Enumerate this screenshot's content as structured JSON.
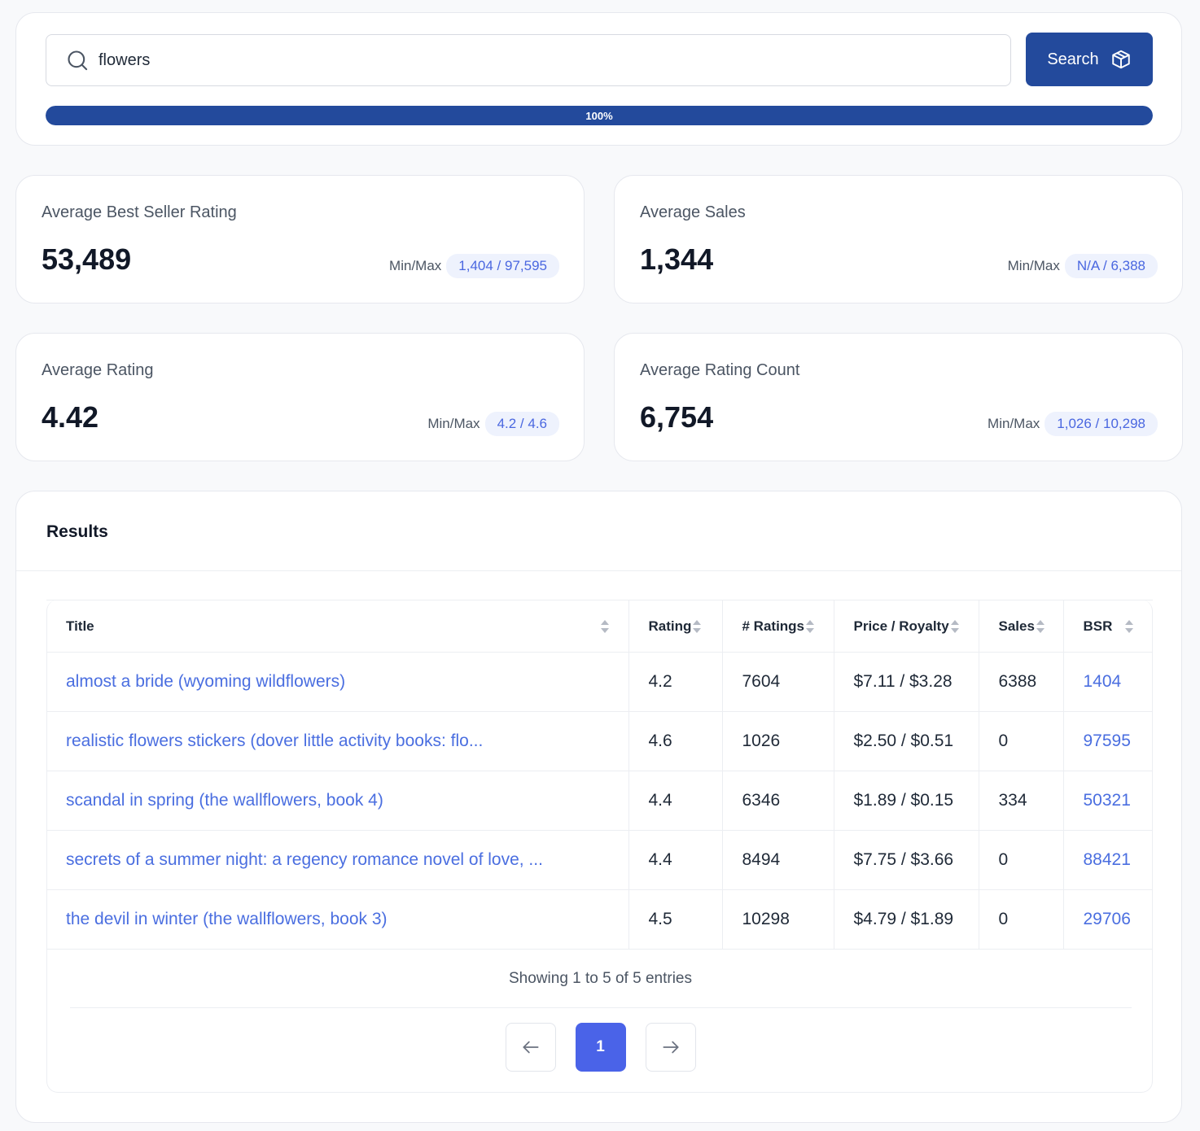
{
  "search": {
    "value": "flowers",
    "button_label": "Search",
    "progress_percent": 100,
    "progress_label": "100%"
  },
  "stats": {
    "bsr": {
      "label": "Average Best Seller Rating",
      "value": "53,489",
      "minmax_label": "Min/Max",
      "minmax": "1,404 / 97,595"
    },
    "sales": {
      "label": "Average Sales",
      "value": "1,344",
      "minmax_label": "Min/Max",
      "minmax": "N/A / 6,388"
    },
    "rating": {
      "label": "Average Rating",
      "value": "4.42",
      "minmax_label": "Min/Max",
      "minmax": "4.2 / 4.6"
    },
    "count": {
      "label": "Average Rating Count",
      "value": "6,754",
      "minmax_label": "Min/Max",
      "minmax": "1,026 / 10,298"
    }
  },
  "results": {
    "title": "Results",
    "columns": [
      "Title",
      "Rating",
      "# Ratings",
      "Price / Royalty",
      "Sales",
      "BSR"
    ],
    "rows": [
      {
        "title": "almost a bride (wyoming wildflowers)",
        "rating": "4.2",
        "ratings": "7604",
        "price": "$7.11 / $3.28",
        "sales": "6388",
        "bsr": "1404"
      },
      {
        "title": "realistic flowers stickers (dover little activity books: flo...",
        "rating": "4.6",
        "ratings": "1026",
        "price": "$2.50 / $0.51",
        "sales": "0",
        "bsr": "97595"
      },
      {
        "title": "scandal in spring (the wallflowers, book 4)",
        "rating": "4.4",
        "ratings": "6346",
        "price": "$1.89 / $0.15",
        "sales": "334",
        "bsr": "50321"
      },
      {
        "title": "secrets of a summer night: a regency romance novel of love, ...",
        "rating": "4.4",
        "ratings": "8494",
        "price": "$7.75 / $3.66",
        "sales": "0",
        "bsr": "88421"
      },
      {
        "title": "the devil in winter (the wallflowers, book 3)",
        "rating": "4.5",
        "ratings": "10298",
        "price": "$4.79 / $1.89",
        "sales": "0",
        "bsr": "29706"
      }
    ],
    "showing": "Showing 1 to 5 of 5 entries",
    "current_page": "1"
  },
  "colors": {
    "primary": "#234a9c",
    "accent": "#4a63e8",
    "link": "#4a6ee0"
  },
  "icons": {
    "search": "search-icon",
    "cube": "cube-icon",
    "prev": "arrow-left-icon",
    "next": "arrow-right-icon"
  }
}
